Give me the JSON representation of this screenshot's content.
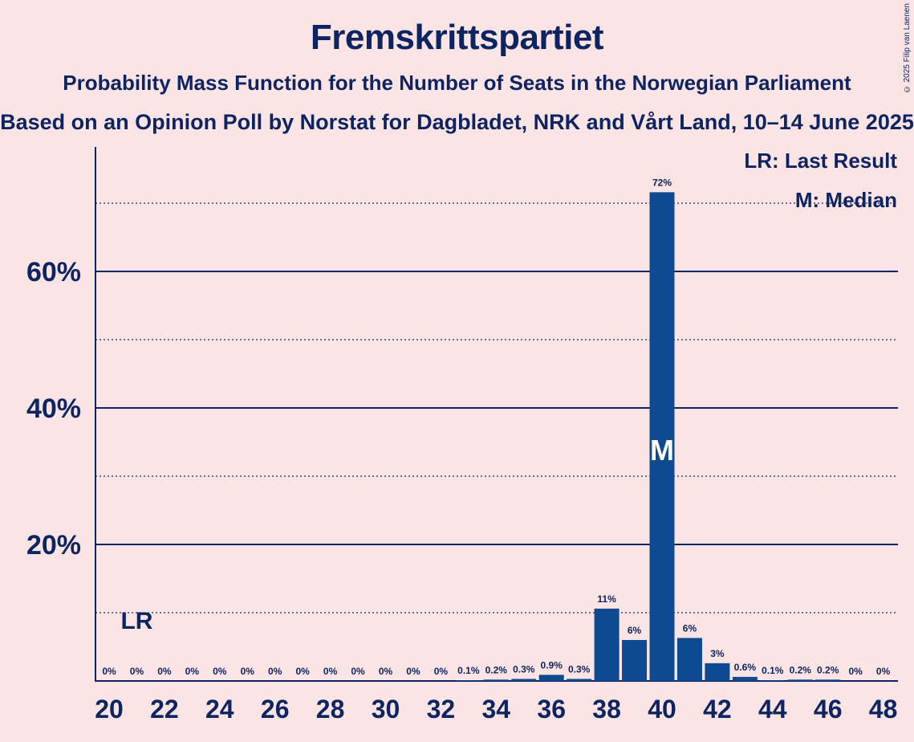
{
  "title": "Fremskrittspartiet",
  "subtitle": "Probability Mass Function for the Number of Seats in the Norwegian Parliament",
  "subtitle2": "Based on an Opinion Poll by Norstat for Dagbladet, NRK and Vårt Land, 10–14 June 2025",
  "copyright": "© 2025 Filip van Laenen",
  "colors": {
    "background": "#fde4e4",
    "bar": "#0d4a8f",
    "text": "#0c2461"
  },
  "chart_data": {
    "type": "bar",
    "x": [
      20,
      21,
      22,
      23,
      24,
      25,
      26,
      27,
      28,
      29,
      30,
      31,
      32,
      33,
      34,
      35,
      36,
      37,
      38,
      39,
      40,
      41,
      42,
      43,
      44,
      45,
      46,
      47,
      48
    ],
    "values": [
      0,
      0,
      0,
      0,
      0,
      0,
      0,
      0,
      0,
      0,
      0,
      0,
      0,
      0.1,
      0.2,
      0.3,
      0.9,
      0.3,
      10.6,
      6.0,
      71.6,
      6.3,
      2.6,
      0.6,
      0.1,
      0.2,
      0.2,
      0,
      0
    ],
    "labels": [
      "0%",
      "0%",
      "0%",
      "0%",
      "0%",
      "0%",
      "0%",
      "0%",
      "0%",
      "0%",
      "0%",
      "0%",
      "0%",
      "0.1%",
      "0.2%",
      "0.3%",
      "0.9%",
      "0.3%",
      "11%",
      "6%",
      "72%",
      "6%",
      "3%",
      "0.6%",
      "0.1%",
      "0.2%",
      "0.2%",
      "0%",
      "0%"
    ],
    "x_tick_labels": [
      "20",
      "22",
      "24",
      "26",
      "28",
      "30",
      "32",
      "34",
      "36",
      "38",
      "40",
      "42",
      "44",
      "46",
      "48"
    ],
    "y_tick_labels": [
      "20%",
      "40%",
      "60%"
    ],
    "ylim": [
      0,
      78
    ],
    "grid": "solid at 20% steps, dotted at 10% steps",
    "last_result": {
      "x": 21,
      "marker": "LR"
    },
    "median": {
      "x": 40,
      "marker": "M"
    },
    "legend": {
      "position": "top-right",
      "entries": [
        "LR: Last Result",
        "M: Median"
      ]
    }
  }
}
